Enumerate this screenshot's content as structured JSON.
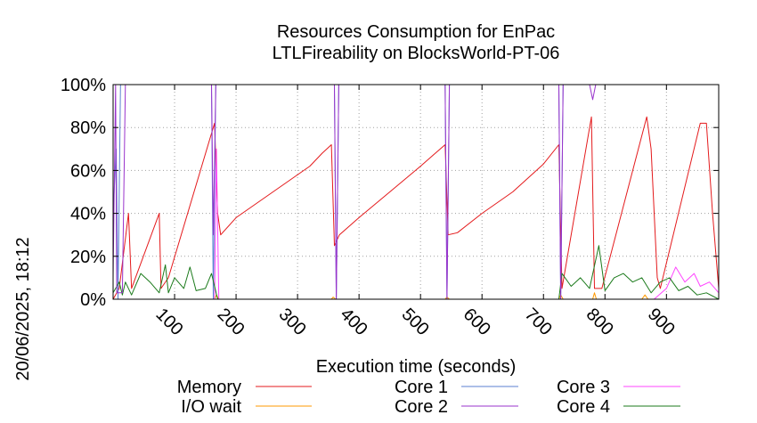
{
  "chart_data": {
    "type": "line",
    "title": "Resources Consumption for EnPac",
    "subtitle": "LTLFireability on BlocksWorld-PT-06",
    "xlabel": "Execution time (seconds)",
    "ylabel": "",
    "timestamp": "20/06/2025, 18:12",
    "xlim": [
      0,
      985
    ],
    "ylim": [
      0,
      100
    ],
    "x_ticks": [
      100,
      200,
      300,
      400,
      500,
      600,
      700,
      800,
      900
    ],
    "y_ticks": [
      {
        "value": 0,
        "label": "0%"
      },
      {
        "value": 20,
        "label": "20%"
      },
      {
        "value": 40,
        "label": "40%"
      },
      {
        "value": 60,
        "label": "60%"
      },
      {
        "value": 80,
        "label": "80%"
      },
      {
        "value": 100,
        "label": "100%"
      }
    ],
    "grid": true,
    "legend_position": "bottom",
    "series": [
      {
        "name": "Memory",
        "color": "#e41a1c",
        "points": [
          [
            0,
            0
          ],
          [
            10,
            5
          ],
          [
            25,
            40
          ],
          [
            30,
            5
          ],
          [
            75,
            40
          ],
          [
            78,
            5
          ],
          [
            90,
            10
          ],
          [
            165,
            82
          ],
          [
            170,
            40
          ],
          [
            175,
            30
          ],
          [
            200,
            38
          ],
          [
            260,
            50
          ],
          [
            320,
            62
          ],
          [
            340,
            68
          ],
          [
            355,
            72
          ],
          [
            360,
            25
          ],
          [
            368,
            30
          ],
          [
            400,
            38
          ],
          [
            450,
            50
          ],
          [
            500,
            62
          ],
          [
            520,
            67
          ],
          [
            540,
            72
          ],
          [
            545,
            30
          ],
          [
            560,
            31
          ],
          [
            600,
            40
          ],
          [
            650,
            50
          ],
          [
            700,
            63
          ],
          [
            725,
            72
          ],
          [
            730,
            5
          ],
          [
            778,
            85
          ],
          [
            783,
            5
          ],
          [
            795,
            5
          ],
          [
            868,
            85
          ],
          [
            875,
            70
          ],
          [
            885,
            10
          ],
          [
            890,
            5
          ],
          [
            955,
            82
          ],
          [
            965,
            82
          ],
          [
            975,
            40
          ],
          [
            985,
            5
          ]
        ]
      },
      {
        "name": "I/O wait",
        "color": "#ff9900",
        "points": [
          [
            0,
            0
          ],
          [
            165,
            0
          ],
          [
            168,
            2
          ],
          [
            172,
            0
          ],
          [
            355,
            0
          ],
          [
            358,
            1
          ],
          [
            362,
            0
          ],
          [
            540,
            0
          ],
          [
            543,
            1
          ],
          [
            547,
            0
          ],
          [
            725,
            0
          ],
          [
            728,
            2
          ],
          [
            732,
            0
          ],
          [
            780,
            0
          ],
          [
            783,
            3
          ],
          [
            786,
            0
          ],
          [
            860,
            0
          ],
          [
            865,
            2
          ],
          [
            870,
            0
          ],
          [
            985,
            0
          ]
        ]
      },
      {
        "name": "Core 1",
        "color": "#5b7fd0",
        "points": [
          [
            0,
            40
          ],
          [
            5,
            70
          ],
          [
            8,
            0
          ],
          [
            12,
            100
          ],
          [
            160,
            100
          ],
          [
            163,
            0
          ],
          [
            167,
            100
          ],
          [
            360,
            100
          ],
          [
            363,
            0
          ],
          [
            367,
            100
          ],
          [
            540,
            100
          ],
          [
            543,
            0
          ],
          [
            547,
            100
          ],
          [
            725,
            100
          ],
          [
            728,
            0
          ],
          [
            732,
            100
          ],
          [
            985,
            100
          ]
        ]
      },
      {
        "name": "Core 2",
        "color": "#9933cc",
        "points": [
          [
            0,
            10
          ],
          [
            4,
            100
          ],
          [
            6,
            3
          ],
          [
            15,
            3
          ],
          [
            20,
            100
          ],
          [
            160,
            100
          ],
          [
            163,
            30
          ],
          [
            167,
            100
          ],
          [
            360,
            100
          ],
          [
            363,
            0
          ],
          [
            367,
            100
          ],
          [
            540,
            100
          ],
          [
            543,
            0
          ],
          [
            547,
            100
          ],
          [
            725,
            100
          ],
          [
            728,
            0
          ],
          [
            732,
            100
          ],
          [
            775,
            100
          ],
          [
            780,
            93
          ],
          [
            785,
            100
          ],
          [
            985,
            100
          ]
        ]
      },
      {
        "name": "Core 3",
        "color": "#ff44ff",
        "points": [
          [
            0,
            0
          ],
          [
            165,
            0
          ],
          [
            168,
            70
          ],
          [
            172,
            0
          ],
          [
            360,
            0
          ],
          [
            540,
            0
          ],
          [
            725,
            0
          ],
          [
            880,
            0
          ],
          [
            900,
            5
          ],
          [
            915,
            15
          ],
          [
            930,
            8
          ],
          [
            945,
            12
          ],
          [
            955,
            6
          ],
          [
            970,
            8
          ],
          [
            985,
            3
          ]
        ]
      },
      {
        "name": "Core 4",
        "color": "#1b7a1b",
        "points": [
          [
            0,
            3
          ],
          [
            10,
            8
          ],
          [
            15,
            2
          ],
          [
            20,
            8
          ],
          [
            30,
            2
          ],
          [
            45,
            12
          ],
          [
            60,
            8
          ],
          [
            75,
            3
          ],
          [
            85,
            16
          ],
          [
            90,
            3
          ],
          [
            100,
            10
          ],
          [
            115,
            5
          ],
          [
            125,
            15
          ],
          [
            135,
            4
          ],
          [
            150,
            5
          ],
          [
            160,
            12
          ],
          [
            170,
            0
          ],
          [
            360,
            0
          ],
          [
            540,
            0
          ],
          [
            725,
            0
          ],
          [
            730,
            12
          ],
          [
            745,
            6
          ],
          [
            760,
            10
          ],
          [
            775,
            5
          ],
          [
            790,
            25
          ],
          [
            800,
            4
          ],
          [
            815,
            10
          ],
          [
            830,
            12
          ],
          [
            845,
            8
          ],
          [
            860,
            10
          ],
          [
            875,
            3
          ],
          [
            890,
            8
          ],
          [
            905,
            10
          ],
          [
            920,
            4
          ],
          [
            935,
            6
          ],
          [
            950,
            2
          ],
          [
            965,
            3
          ],
          [
            985,
            0
          ]
        ]
      }
    ]
  }
}
